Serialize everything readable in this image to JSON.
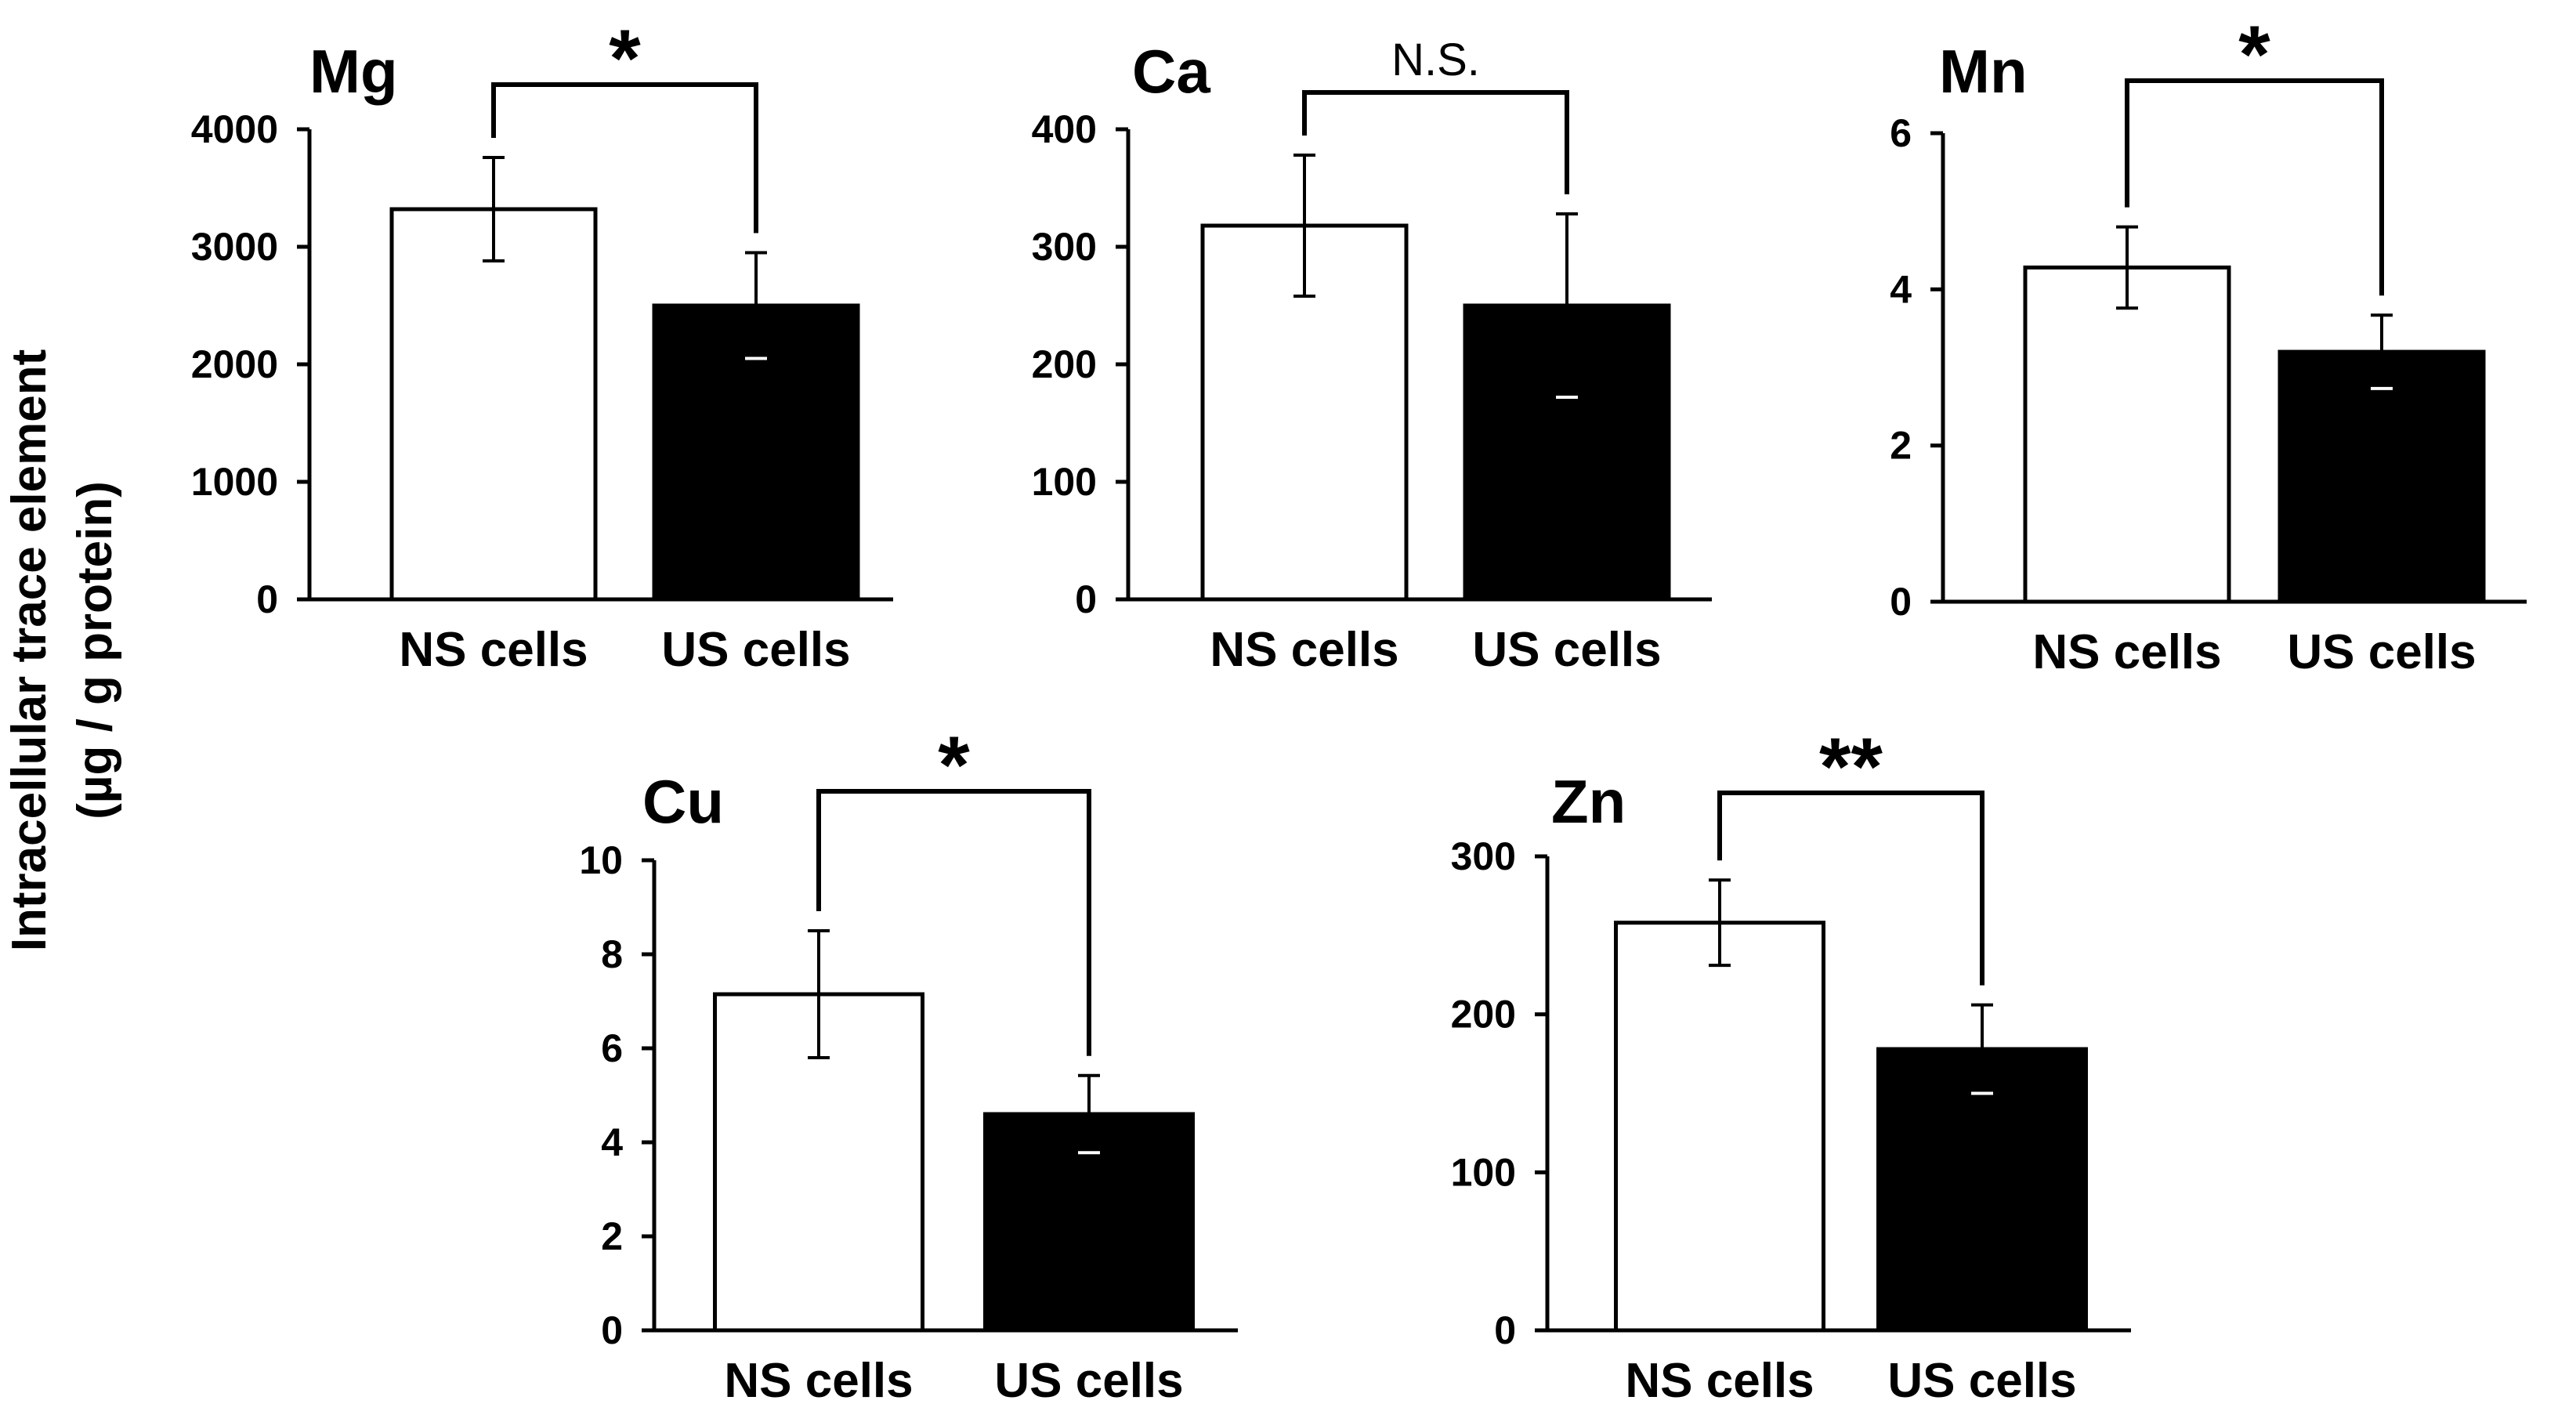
{
  "figure": {
    "ylabel_line1": "Intracellular  trace element",
    "ylabel_line2": "(µg / g protein)"
  },
  "colors": {
    "ns_fill": "#ffffff",
    "us_fill": "#000000",
    "stroke": "#000000"
  },
  "chart_data": [
    {
      "type": "bar",
      "title": "Mg",
      "categories": [
        "NS cells",
        "US cells"
      ],
      "values": [
        3320,
        2500
      ],
      "errors": [
        440,
        450
      ],
      "ylim": [
        0,
        4000
      ],
      "ticks": [
        0,
        1000,
        2000,
        3000,
        4000
      ],
      "tick_labels": [
        "0",
        "1000",
        "2000",
        "3000",
        "4000"
      ],
      "significance": "*",
      "xlabel": "",
      "ylabel": ""
    },
    {
      "type": "bar",
      "title": "Ca",
      "categories": [
        "NS cells",
        "US cells"
      ],
      "values": [
        318,
        250
      ],
      "errors": [
        60,
        78
      ],
      "ylim": [
        0,
        400
      ],
      "ticks": [
        0,
        100,
        200,
        300,
        400
      ],
      "tick_labels": [
        "0",
        "100",
        "200",
        "300",
        "400"
      ],
      "significance": "N.S.",
      "xlabel": "",
      "ylabel": ""
    },
    {
      "type": "bar",
      "title": "Mn",
      "categories": [
        "NS cells",
        "US cells"
      ],
      "values": [
        4.28,
        3.2
      ],
      "errors": [
        0.52,
        0.47
      ],
      "ylim": [
        0,
        6
      ],
      "ticks": [
        0,
        2,
        4,
        6
      ],
      "tick_labels": [
        "0",
        "2",
        "4",
        "6"
      ],
      "significance": "*",
      "xlabel": "",
      "ylabel": ""
    },
    {
      "type": "bar",
      "title": "Cu",
      "categories": [
        "NS cells",
        "US cells"
      ],
      "values": [
        7.15,
        4.6
      ],
      "errors": [
        1.35,
        0.82
      ],
      "ylim": [
        0,
        10
      ],
      "ticks": [
        0,
        2,
        4,
        6,
        8,
        10
      ],
      "tick_labels": [
        "0",
        "2",
        "4",
        "6",
        "8",
        "10"
      ],
      "significance": "*",
      "xlabel": "",
      "ylabel": ""
    },
    {
      "type": "bar",
      "title": "Zn",
      "categories": [
        "NS cells",
        "US cells"
      ],
      "values": [
        258,
        178
      ],
      "errors": [
        27,
        28
      ],
      "ylim": [
        0,
        300
      ],
      "ticks": [
        0,
        100,
        200,
        300
      ],
      "tick_labels": [
        "0",
        "100",
        "200",
        "300"
      ],
      "significance": "**",
      "xlabel": "",
      "ylabel": ""
    }
  ]
}
